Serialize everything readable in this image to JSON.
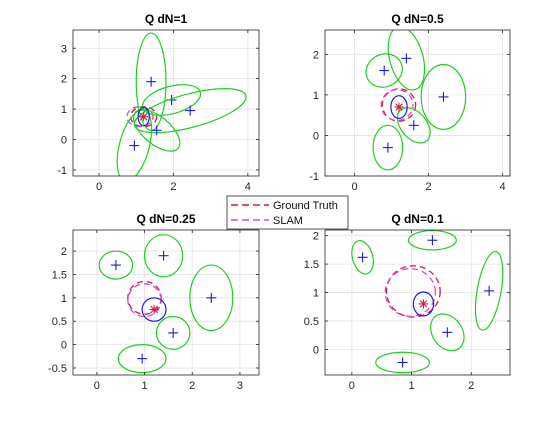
{
  "colors": {
    "ground_truth": "#d81b3b",
    "slam": "#e040e0",
    "landmark_ellipse": "#1ed01e",
    "landmark_marker": "#1a1adf",
    "pose_ellipse": "#1a1adf",
    "pose_marker": "#d81b3b",
    "axis": "#262626",
    "grid": "#e3e3e3"
  },
  "legend": {
    "ground_truth_label": "Ground Truth",
    "slam_label": "SLAM",
    "placement": "center"
  },
  "chart_data": [
    {
      "type": "scatter",
      "title": "Q dN=1",
      "grid": true,
      "xlim": [
        -0.7,
        4.3
      ],
      "ylim": [
        -1.2,
        3.6
      ],
      "xticks": [
        0,
        2,
        4
      ],
      "yticks": [
        -1,
        0,
        1,
        2,
        3
      ],
      "landmarks": [
        {
          "x": 1.4,
          "y": 1.9,
          "ellipse": {
            "rx": 0.4,
            "ry": 1.6,
            "angle": 0
          }
        },
        {
          "x": 1.95,
          "y": 1.3,
          "ellipse": {
            "rx": 0.8,
            "ry": 0.45,
            "angle": 15
          }
        },
        {
          "x": 2.45,
          "y": 0.95,
          "ellipse": {
            "rx": 1.55,
            "ry": 0.55,
            "angle": 15
          }
        },
        {
          "x": 1.55,
          "y": 0.3,
          "ellipse": {
            "rx": 0.75,
            "ry": 0.45,
            "angle": -40
          }
        },
        {
          "x": 0.95,
          "y": -0.2,
          "ellipse": {
            "rx": 0.4,
            "ry": 1.2,
            "angle": -15
          }
        }
      ],
      "robot": {
        "x": 1.2,
        "y": 0.75,
        "ellipse": {
          "rx": 0.15,
          "ry": 0.3,
          "angle": 0
        }
      },
      "ground_truth_path": {
        "cx": 1.2,
        "cy": 0.75,
        "rx": 0.35,
        "ry": 0.33
      },
      "slam_path": {
        "cx": 1.1,
        "cy": 0.75,
        "rx": 0.35,
        "ry": 0.33
      }
    },
    {
      "type": "scatter",
      "title": "Q dN=0.5",
      "grid": true,
      "xlim": [
        -0.8,
        4.2
      ],
      "ylim": [
        -1.0,
        2.6
      ],
      "xticks": [
        0,
        2,
        4
      ],
      "yticks": [
        -1,
        0,
        1,
        2
      ],
      "landmarks": [
        {
          "x": 0.8,
          "y": 1.6,
          "ellipse": {
            "rx": 0.5,
            "ry": 0.4,
            "angle": 25
          }
        },
        {
          "x": 1.4,
          "y": 1.9,
          "ellipse": {
            "rx": 0.45,
            "ry": 0.8,
            "angle": 15
          }
        },
        {
          "x": 2.4,
          "y": 0.95,
          "ellipse": {
            "rx": 0.6,
            "ry": 0.8,
            "angle": 0
          }
        },
        {
          "x": 1.6,
          "y": 0.25,
          "ellipse": {
            "rx": 0.35,
            "ry": 0.5,
            "angle": 40
          }
        },
        {
          "x": 0.9,
          "y": -0.3,
          "ellipse": {
            "rx": 0.4,
            "ry": 0.55,
            "angle": 0
          }
        }
      ],
      "robot": {
        "x": 1.2,
        "y": 0.7,
        "ellipse": {
          "rx": 0.22,
          "ry": 0.28,
          "angle": 0
        }
      },
      "ground_truth_path": {
        "cx": 1.2,
        "cy": 0.75,
        "rx": 0.45,
        "ry": 0.4
      },
      "slam_path": {
        "cx": 1.15,
        "cy": 0.75,
        "rx": 0.43,
        "ry": 0.38
      }
    },
    {
      "type": "scatter",
      "title": "Q dN=0.25",
      "grid": true,
      "xlim": [
        -0.5,
        3.4
      ],
      "ylim": [
        -0.65,
        2.45
      ],
      "xticks": [
        0,
        1,
        2,
        3
      ],
      "yticks": [
        -0.5,
        0,
        0.5,
        1,
        1.5,
        2
      ],
      "landmarks": [
        {
          "x": 0.4,
          "y": 1.7,
          "ellipse": {
            "rx": 0.35,
            "ry": 0.3,
            "angle": 0
          }
        },
        {
          "x": 1.4,
          "y": 1.9,
          "ellipse": {
            "rx": 0.4,
            "ry": 0.45,
            "angle": 0
          }
        },
        {
          "x": 2.4,
          "y": 1.0,
          "ellipse": {
            "rx": 0.45,
            "ry": 0.7,
            "angle": 0
          }
        },
        {
          "x": 1.6,
          "y": 0.25,
          "ellipse": {
            "rx": 0.35,
            "ry": 0.35,
            "angle": 0
          }
        },
        {
          "x": 0.95,
          "y": -0.3,
          "ellipse": {
            "rx": 0.5,
            "ry": 0.3,
            "angle": 0
          }
        }
      ],
      "robot": {
        "x": 1.2,
        "y": 0.75,
        "ellipse": {
          "rx": 0.25,
          "ry": 0.25,
          "angle": 0
        }
      },
      "ground_truth_path": {
        "cx": 1.0,
        "cy": 1.0,
        "rx": 0.35,
        "ry": 0.35
      },
      "slam_path": {
        "cx": 1.0,
        "cy": 0.95,
        "rx": 0.35,
        "ry": 0.35
      }
    },
    {
      "type": "scatter",
      "title": "Q dN=0.1",
      "grid": true,
      "xlim": [
        -0.45,
        2.65
      ],
      "ylim": [
        -0.45,
        2.1
      ],
      "xticks": [
        0,
        1,
        2
      ],
      "yticks": [
        0,
        0.5,
        1,
        1.5,
        2
      ],
      "landmarks": [
        {
          "x": 0.18,
          "y": 1.62,
          "ellipse": {
            "rx": 0.17,
            "ry": 0.3,
            "angle": 15
          }
        },
        {
          "x": 1.35,
          "y": 1.92,
          "ellipse": {
            "rx": 0.4,
            "ry": 0.17,
            "angle": 0
          }
        },
        {
          "x": 2.3,
          "y": 1.03,
          "ellipse": {
            "rx": 0.2,
            "ry": 0.7,
            "angle": -10
          }
        },
        {
          "x": 1.6,
          "y": 0.3,
          "ellipse": {
            "rx": 0.25,
            "ry": 0.35,
            "angle": 35
          }
        },
        {
          "x": 0.85,
          "y": -0.23,
          "ellipse": {
            "rx": 0.45,
            "ry": 0.18,
            "angle": 0
          }
        }
      ],
      "robot": {
        "x": 1.2,
        "y": 0.8,
        "ellipse": {
          "rx": 0.17,
          "ry": 0.21,
          "angle": 0
        }
      },
      "ground_truth_path": {
        "cx": 1.03,
        "cy": 1.02,
        "rx": 0.45,
        "ry": 0.45
      },
      "slam_path": {
        "cx": 0.98,
        "cy": 1.0,
        "rx": 0.42,
        "ry": 0.42
      }
    }
  ]
}
